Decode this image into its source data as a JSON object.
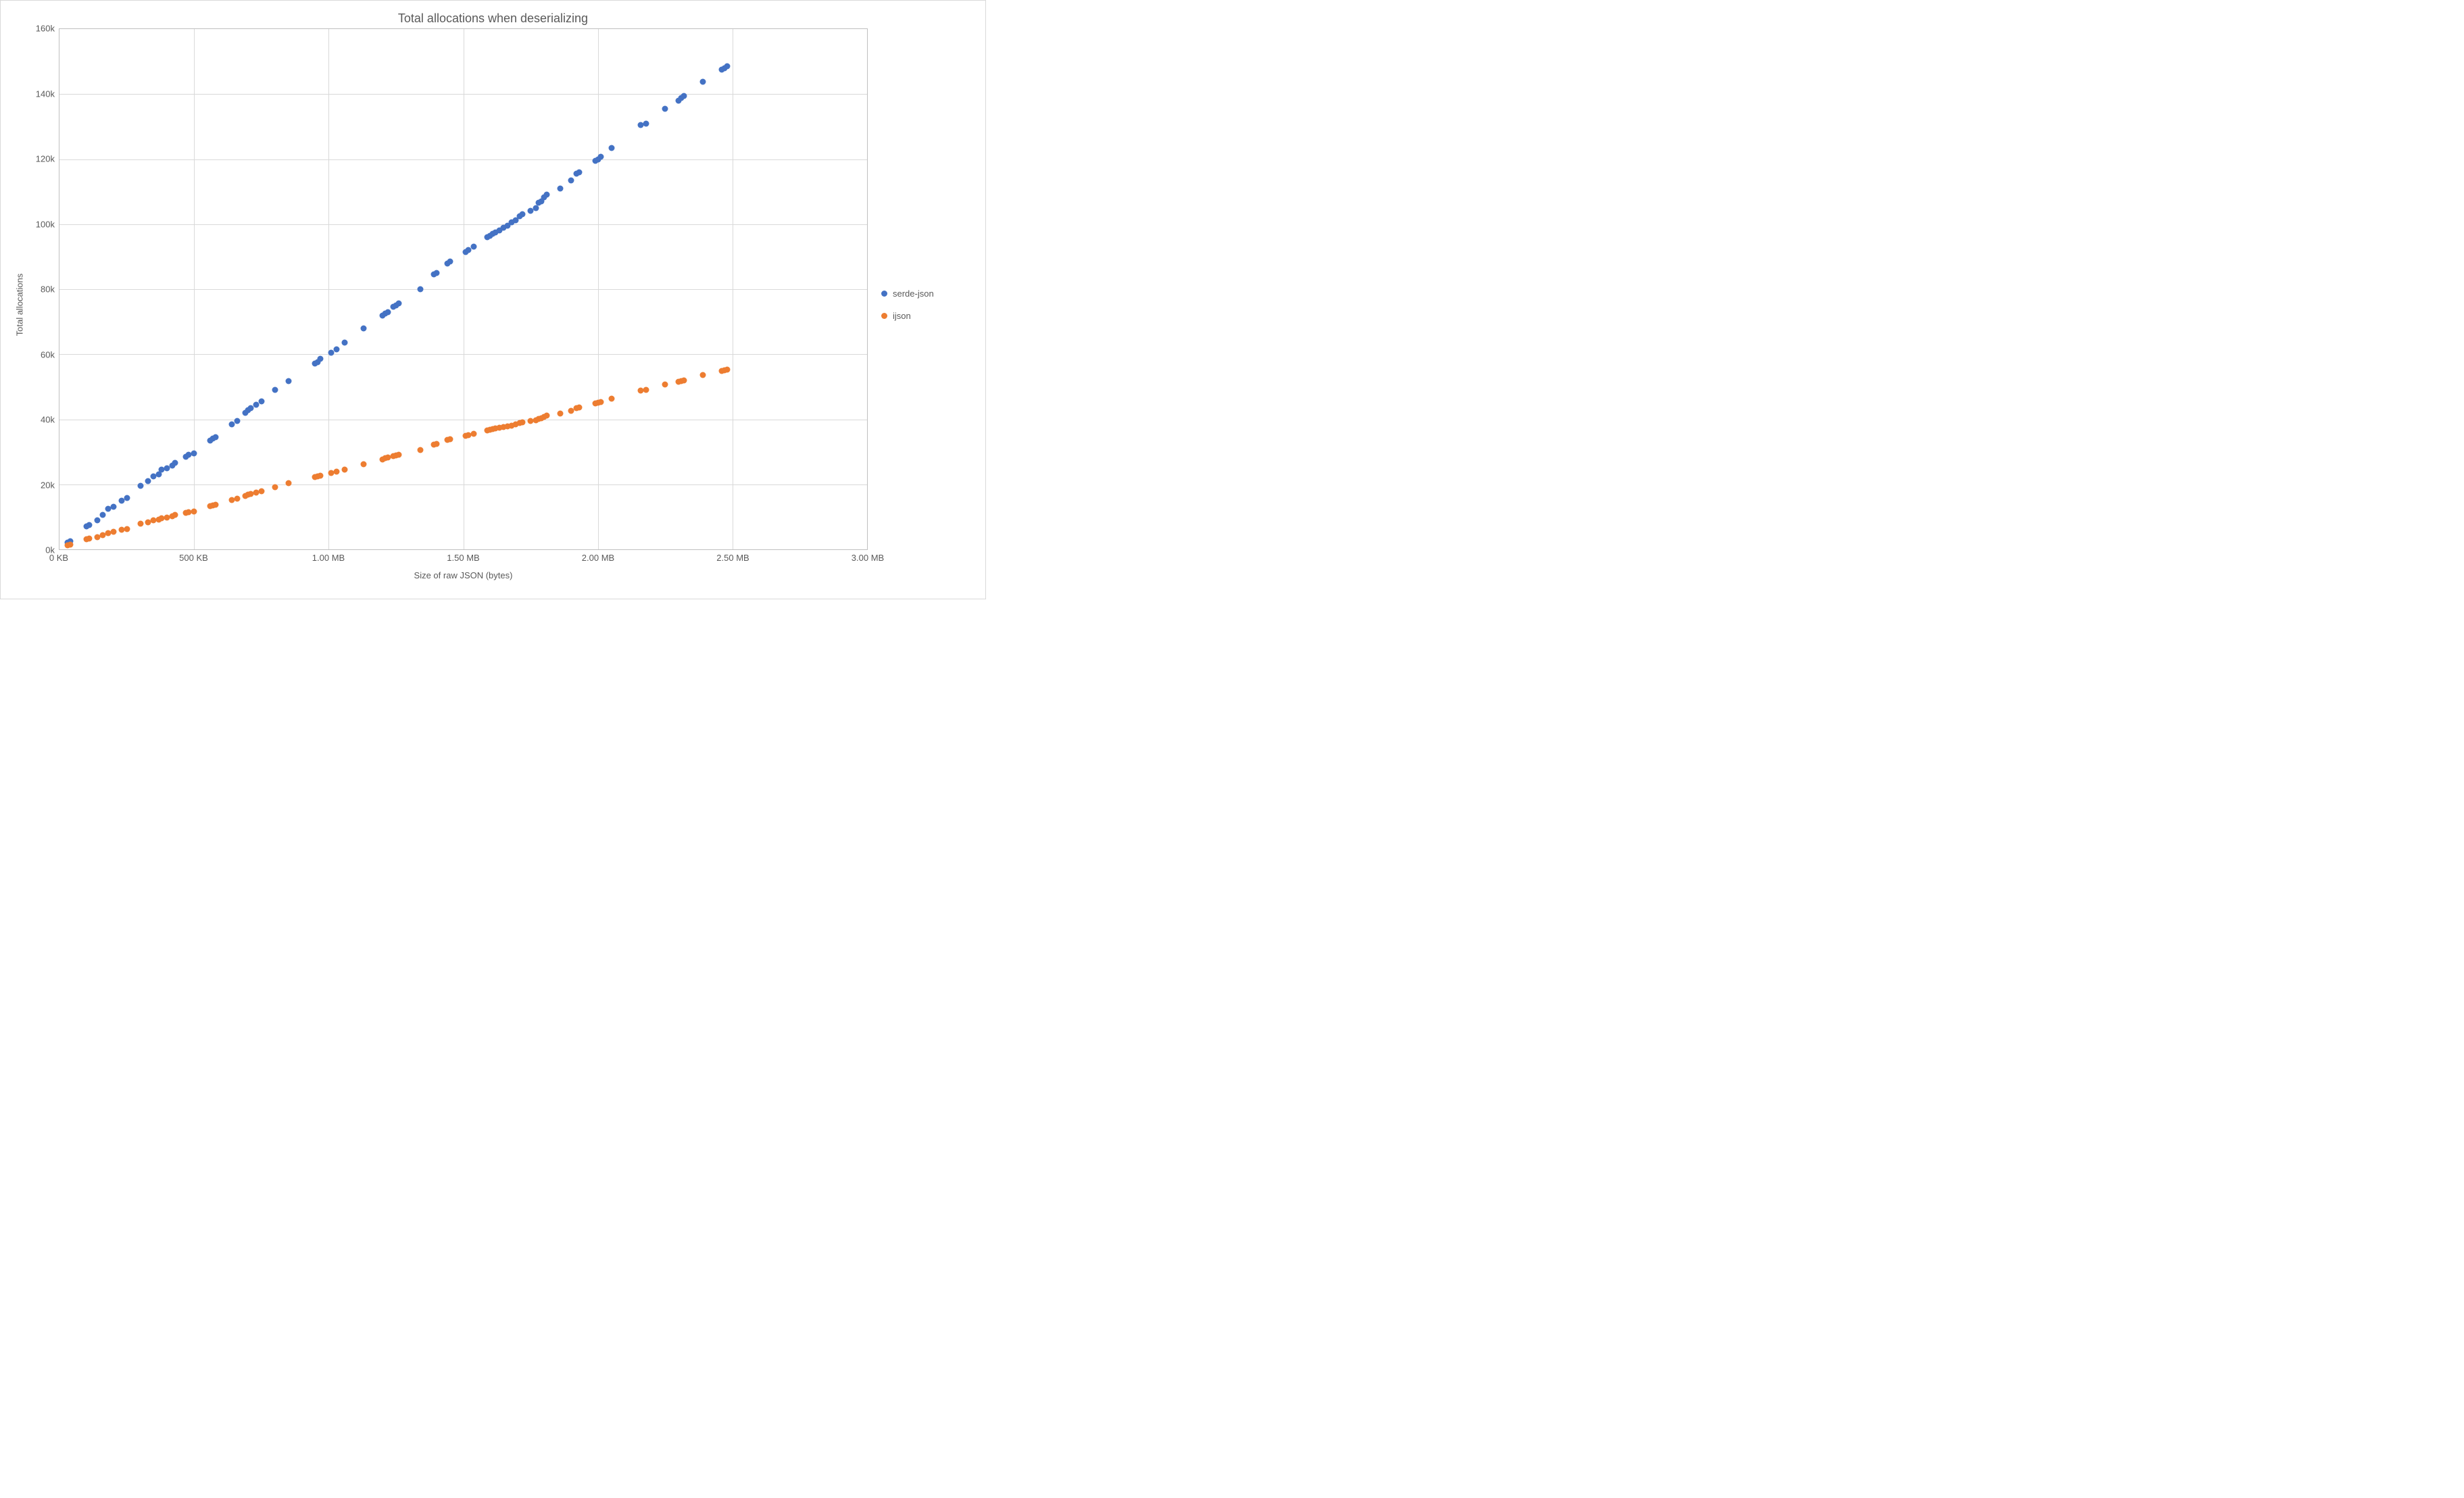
{
  "chart": {
    "type": "scatter",
    "title": "Total allocations when deserializing",
    "title_fontsize": 18,
    "xlabel": "Size of raw JSON (bytes)",
    "ylabel": "Total allocations",
    "label_fontsize": 13,
    "tick_fontsize": 13,
    "xlim": [
      0,
      3.0
    ],
    "ylim": [
      0,
      160
    ],
    "x_ticks": [
      {
        "v": 0.0,
        "label": "0 KB"
      },
      {
        "v": 0.5,
        "label": "500 KB"
      },
      {
        "v": 1.0,
        "label": "1.00 MB"
      },
      {
        "v": 1.5,
        "label": "1.50 MB"
      },
      {
        "v": 2.0,
        "label": "2.00 MB"
      },
      {
        "v": 2.5,
        "label": "2.50 MB"
      },
      {
        "v": 3.0,
        "label": "3.00 MB"
      }
    ],
    "y_ticks": [
      {
        "v": 0,
        "label": "0k"
      },
      {
        "v": 20,
        "label": "20k"
      },
      {
        "v": 40,
        "label": "40k"
      },
      {
        "v": 60,
        "label": "60k"
      },
      {
        "v": 80,
        "label": "80k"
      },
      {
        "v": 100,
        "label": "100k"
      },
      {
        "v": 120,
        "label": "120k"
      },
      {
        "v": 140,
        "label": "140k"
      },
      {
        "v": 160,
        "label": "160k"
      }
    ],
    "background_color": "#ffffff",
    "grid_color": "#d9d9d9",
    "border_color": "#bfbfbf",
    "marker_size": 9,
    "series": [
      {
        "name": "serde-json",
        "color": "#4472c4",
        "points": [
          [
            0.03,
            2.0
          ],
          [
            0.04,
            2.5
          ],
          [
            0.1,
            7.0
          ],
          [
            0.11,
            7.5
          ],
          [
            0.14,
            9.0
          ],
          [
            0.16,
            10.5
          ],
          [
            0.18,
            12.5
          ],
          [
            0.2,
            13.0
          ],
          [
            0.23,
            15.0
          ],
          [
            0.25,
            15.8
          ],
          [
            0.3,
            19.5
          ],
          [
            0.33,
            21.0
          ],
          [
            0.35,
            22.5
          ],
          [
            0.37,
            23.0
          ],
          [
            0.38,
            24.5
          ],
          [
            0.4,
            25.0
          ],
          [
            0.42,
            25.8
          ],
          [
            0.43,
            26.5
          ],
          [
            0.47,
            28.5
          ],
          [
            0.48,
            29.0
          ],
          [
            0.5,
            29.5
          ],
          [
            0.56,
            33.5
          ],
          [
            0.57,
            34.0
          ],
          [
            0.58,
            34.5
          ],
          [
            0.64,
            38.5
          ],
          [
            0.66,
            39.5
          ],
          [
            0.69,
            42.0
          ],
          [
            0.7,
            42.8
          ],
          [
            0.71,
            43.5
          ],
          [
            0.73,
            44.5
          ],
          [
            0.75,
            45.5
          ],
          [
            0.8,
            49.0
          ],
          [
            0.85,
            51.8
          ],
          [
            0.95,
            57.2
          ],
          [
            0.96,
            57.5
          ],
          [
            0.97,
            58.5
          ],
          [
            1.01,
            60.5
          ],
          [
            1.03,
            61.5
          ],
          [
            1.06,
            63.5
          ],
          [
            1.13,
            68.0
          ],
          [
            1.2,
            71.8
          ],
          [
            1.21,
            72.5
          ],
          [
            1.22,
            73.0
          ],
          [
            1.24,
            74.5
          ],
          [
            1.25,
            75.0
          ],
          [
            1.26,
            75.6
          ],
          [
            1.34,
            80.0
          ],
          [
            1.39,
            84.5
          ],
          [
            1.4,
            85.0
          ],
          [
            1.44,
            88.0
          ],
          [
            1.45,
            88.5
          ],
          [
            1.51,
            91.5
          ],
          [
            1.52,
            92.0
          ],
          [
            1.54,
            93.0
          ],
          [
            1.59,
            96.0
          ],
          [
            1.6,
            96.5
          ],
          [
            1.61,
            97.0
          ],
          [
            1.62,
            97.5
          ],
          [
            1.635,
            98.0
          ],
          [
            1.65,
            99.0
          ],
          [
            1.665,
            99.5
          ],
          [
            1.68,
            100.5
          ],
          [
            1.695,
            101.2
          ],
          [
            1.71,
            102.5
          ],
          [
            1.72,
            103.0
          ],
          [
            1.75,
            104.2
          ],
          [
            1.77,
            105.0
          ],
          [
            1.78,
            106.5
          ],
          [
            1.79,
            107.0
          ],
          [
            1.8,
            108.2
          ],
          [
            1.81,
            109.0
          ],
          [
            1.86,
            111.0
          ],
          [
            1.9,
            113.5
          ],
          [
            1.92,
            115.5
          ],
          [
            1.93,
            116.0
          ],
          [
            1.99,
            119.5
          ],
          [
            2.0,
            120.0
          ],
          [
            2.01,
            120.7
          ],
          [
            2.05,
            123.5
          ],
          [
            2.16,
            130.5
          ],
          [
            2.18,
            131.0
          ],
          [
            2.25,
            135.5
          ],
          [
            2.3,
            138.0
          ],
          [
            2.31,
            138.8
          ],
          [
            2.32,
            139.5
          ],
          [
            2.39,
            143.8
          ],
          [
            2.46,
            147.5
          ],
          [
            2.47,
            148.0
          ],
          [
            2.48,
            148.5
          ]
        ]
      },
      {
        "name": "ijson",
        "color": "#ed7d31",
        "points": [
          [
            0.03,
            1.2
          ],
          [
            0.04,
            1.5
          ],
          [
            0.1,
            3.2
          ],
          [
            0.11,
            3.4
          ],
          [
            0.14,
            3.8
          ],
          [
            0.16,
            4.4
          ],
          [
            0.18,
            5.0
          ],
          [
            0.2,
            5.3
          ],
          [
            0.23,
            6.0
          ],
          [
            0.25,
            6.3
          ],
          [
            0.3,
            7.8
          ],
          [
            0.33,
            8.4
          ],
          [
            0.35,
            9.0
          ],
          [
            0.37,
            9.2
          ],
          [
            0.38,
            9.6
          ],
          [
            0.4,
            9.8
          ],
          [
            0.42,
            10.2
          ],
          [
            0.43,
            10.5
          ],
          [
            0.47,
            11.3
          ],
          [
            0.48,
            11.5
          ],
          [
            0.5,
            11.7
          ],
          [
            0.56,
            13.3
          ],
          [
            0.57,
            13.5
          ],
          [
            0.58,
            13.7
          ],
          [
            0.64,
            15.2
          ],
          [
            0.66,
            15.5
          ],
          [
            0.69,
            16.5
          ],
          [
            0.7,
            16.8
          ],
          [
            0.71,
            17.0
          ],
          [
            0.73,
            17.4
          ],
          [
            0.75,
            17.8
          ],
          [
            0.8,
            19.2
          ],
          [
            0.85,
            20.3
          ],
          [
            0.95,
            22.3
          ],
          [
            0.96,
            22.5
          ],
          [
            0.97,
            22.7
          ],
          [
            1.01,
            23.5
          ],
          [
            1.03,
            23.9
          ],
          [
            1.06,
            24.6
          ],
          [
            1.13,
            26.2
          ],
          [
            1.2,
            27.7
          ],
          [
            1.21,
            28.0
          ],
          [
            1.22,
            28.2
          ],
          [
            1.24,
            28.6
          ],
          [
            1.25,
            28.8
          ],
          [
            1.26,
            29.0
          ],
          [
            1.34,
            30.6
          ],
          [
            1.39,
            32.3
          ],
          [
            1.4,
            32.5
          ],
          [
            1.44,
            33.7
          ],
          [
            1.45,
            33.9
          ],
          [
            1.51,
            34.9
          ],
          [
            1.52,
            35.1
          ],
          [
            1.54,
            35.5
          ],
          [
            1.59,
            36.5
          ],
          [
            1.6,
            36.7
          ],
          [
            1.61,
            36.9
          ],
          [
            1.62,
            37.1
          ],
          [
            1.635,
            37.3
          ],
          [
            1.65,
            37.6
          ],
          [
            1.665,
            37.8
          ],
          [
            1.68,
            38.1
          ],
          [
            1.695,
            38.4
          ],
          [
            1.71,
            38.8
          ],
          [
            1.72,
            39.0
          ],
          [
            1.75,
            39.4
          ],
          [
            1.77,
            39.7
          ],
          [
            1.78,
            40.2
          ],
          [
            1.79,
            40.4
          ],
          [
            1.8,
            40.8
          ],
          [
            1.81,
            41.1
          ],
          [
            1.86,
            41.8
          ],
          [
            1.9,
            42.7
          ],
          [
            1.92,
            43.4
          ],
          [
            1.93,
            43.6
          ],
          [
            1.99,
            44.9
          ],
          [
            2.0,
            45.1
          ],
          [
            2.01,
            45.3
          ],
          [
            2.05,
            46.3
          ],
          [
            2.16,
            48.8
          ],
          [
            2.18,
            49.0
          ],
          [
            2.25,
            50.6
          ],
          [
            2.3,
            51.5
          ],
          [
            2.31,
            51.8
          ],
          [
            2.32,
            52.0
          ],
          [
            2.39,
            53.6
          ],
          [
            2.46,
            54.8
          ],
          [
            2.47,
            55.0
          ],
          [
            2.48,
            55.2
          ]
        ]
      }
    ]
  }
}
